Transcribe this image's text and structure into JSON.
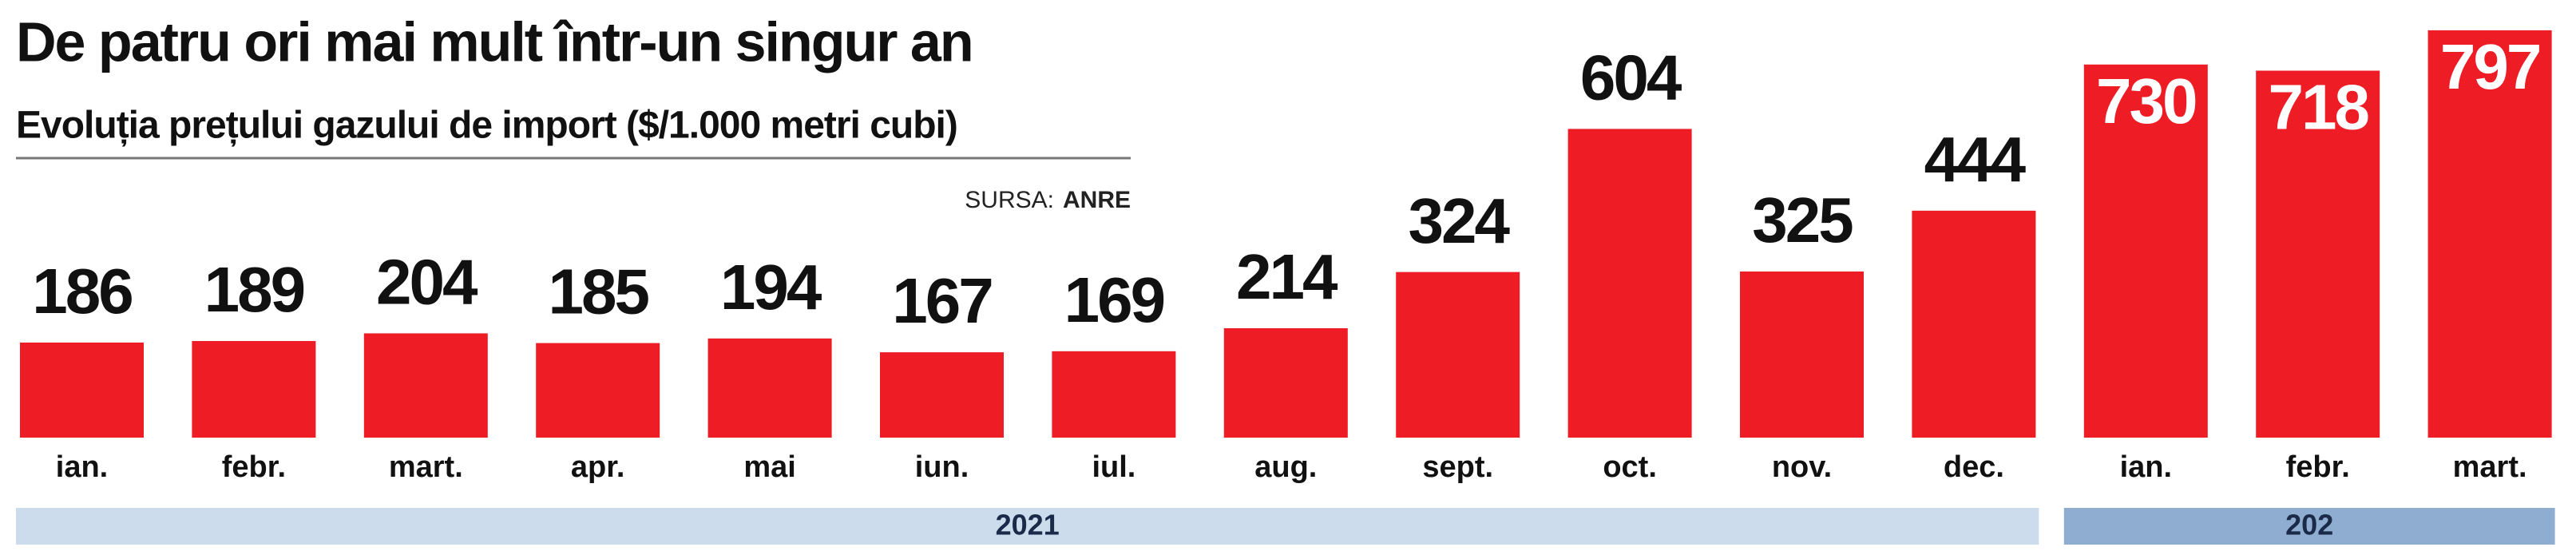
{
  "chart_data": {
    "type": "bar",
    "title": "De patru ori mai mult într-un singur an",
    "subtitle": "Evoluția prețului gazului de import ($/1.000 metri cubi)",
    "source_label": "SURSA:",
    "source": "ANRE",
    "color": "#ee1c25",
    "groups": [
      {
        "name": "2021",
        "band_color": "#cddcec",
        "categories": [
          "ian.",
          "febr.",
          "mart.",
          "apr.",
          "mai",
          "iun.",
          "iul.",
          "aug.",
          "sept.",
          "oct.",
          "nov.",
          "dec."
        ],
        "values": [
          186,
          189,
          204,
          185,
          194,
          167,
          169,
          214,
          324,
          604,
          325,
          444
        ]
      },
      {
        "name": "202",
        "band_color": "#8eadd0",
        "categories": [
          "ian.",
          "febr.",
          "mart."
        ],
        "values": [
          730,
          718,
          797
        ]
      }
    ]
  }
}
